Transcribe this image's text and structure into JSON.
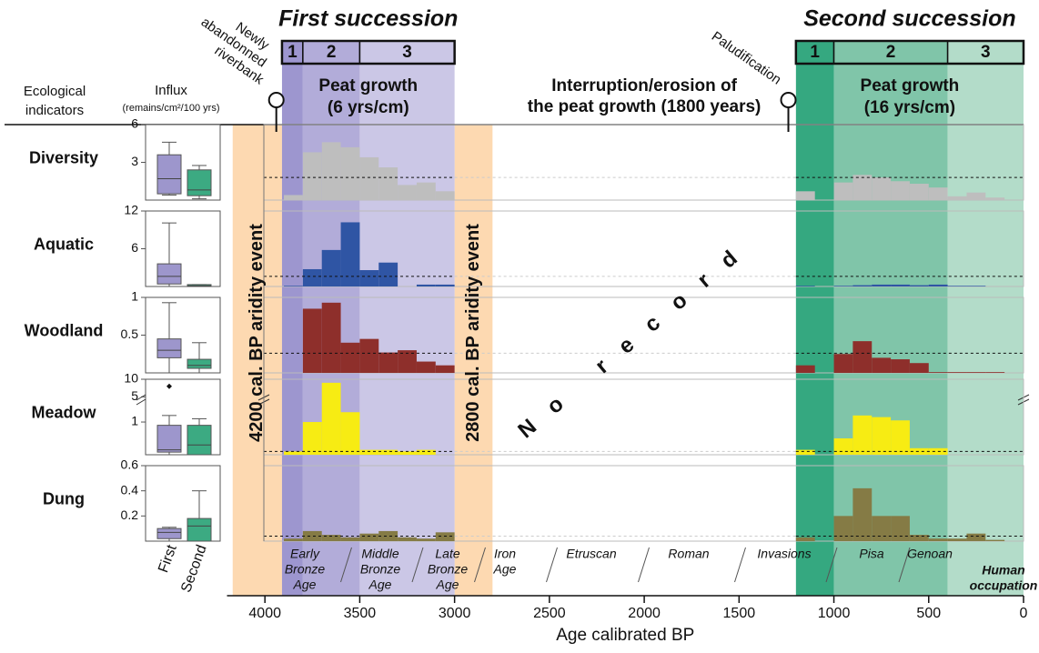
{
  "chart_data": {
    "type": "step",
    "xlabel": "Age calibrated BP",
    "xlim": [
      4200,
      0
    ],
    "xticks": [
      4000,
      3500,
      3000,
      2500,
      2000,
      1500,
      1000,
      500,
      0
    ],
    "box": {
      "header": [
        "Ecological",
        "indicators"
      ],
      "title": "Influx",
      "subtitle": "(remains/cm²/100 yrs)",
      "categories": [
        "First",
        "Second"
      ],
      "colors": [
        "#9d96cc",
        "#3caa82"
      ]
    },
    "successions": [
      {
        "title": "First succession",
        "color": "#5b4fa3",
        "growth": [
          "Peat growth",
          "(6 yrs/cm)"
        ],
        "bins": [
          3900,
          3800,
          3700,
          3600,
          3500,
          3400,
          3300,
          3200,
          3100,
          3000
        ],
        "phases": [
          {
            "label": "1",
            "span": [
              3910,
              3800
            ],
            "color": "#9d96cf"
          },
          {
            "label": "2",
            "span": [
              3800,
              3500
            ],
            "color": "#b2acd9"
          },
          {
            "label": "3",
            "span": [
              3500,
              3000
            ],
            "color": "#cbc7e6"
          }
        ]
      },
      {
        "title": "Second succession",
        "color": "#1f9a6e",
        "growth": [
          "Peat growth",
          "(16 yrs/cm)"
        ],
        "bins": [
          1200,
          1100,
          1000,
          900,
          800,
          700,
          600,
          500,
          400,
          300,
          200,
          100,
          0
        ],
        "phases": [
          {
            "label": "1",
            "span": [
              1200,
              1000
            ],
            "color": "#35a880"
          },
          {
            "label": "2",
            "span": [
              1000,
              400
            ],
            "color": "#80c5a9"
          },
          {
            "label": "3",
            "span": [
              400,
              0
            ],
            "color": "#b3dcc9"
          }
        ]
      }
    ],
    "aridity": [
      {
        "label": "4200 cal. BP aridity event",
        "span": [
          4170,
          3910
        ]
      },
      {
        "label": "2800 cal. BP aridity event",
        "span": [
          3000,
          2800
        ]
      }
    ],
    "events": [
      {
        "label": [
          "Newly",
          "abandonned",
          "riverbank"
        ],
        "x": 3940
      },
      {
        "label": [
          "Paludification"
        ],
        "x": 1240
      }
    ],
    "interruption": [
      "Interruption/erosion of",
      "the peat growth (1800 years)"
    ],
    "no_record": "No record",
    "periods": [
      [
        "Early",
        "Bronze",
        "Age"
      ],
      [
        "Middle",
        "Bronze",
        "Age"
      ],
      [
        "Late",
        "Bronze",
        "Age"
      ],
      [
        "Iron",
        "Age"
      ],
      [
        "Etruscan"
      ],
      [
        "Roman"
      ],
      [
        "Invasions"
      ],
      [
        "Pisa"
      ],
      [
        "Genoan"
      ],
      [
        "Human",
        "occupation"
      ]
    ],
    "panels": [
      {
        "name": "Diversity",
        "color": "#bebebe",
        "ylim": [
          0,
          6
        ],
        "yticks": [
          3,
          6
        ],
        "threshold": 1.8,
        "values": [
          [
            0.4,
            3.8,
            4.6,
            4.2,
            3.4,
            2.6,
            1.2,
            1.4,
            0.7
          ],
          [
            0.7,
            0,
            1.4,
            2.0,
            1.8,
            1.5,
            1.3,
            1.0,
            0.3,
            0.6,
            0.2,
            0
          ]
        ],
        "boxes": [
          [
            0.4,
            0.5,
            1.7,
            3.6,
            4.6
          ],
          [
            0.1,
            0.35,
            0.8,
            2.4,
            2.75
          ]
        ]
      },
      {
        "name": "Aquatic",
        "color": "#2f55a4",
        "ylim": [
          0,
          12
        ],
        "yticks": [
          6,
          12
        ],
        "threshold": 1.6,
        "values": [
          [
            0.1,
            2.75,
            5.8,
            10.2,
            2.6,
            3.8,
            0,
            0.3,
            0.3
          ],
          [
            0.1,
            0,
            0.1,
            0.2,
            0.3,
            0.3,
            0.2,
            0.3,
            0.1,
            0.1,
            0,
            0
          ]
        ],
        "boxes": [
          [
            0,
            0.4,
            1.6,
            3.6,
            10.1
          ],
          [
            0,
            0,
            0.1,
            0.3,
            0.3
          ]
        ]
      },
      {
        "name": "Woodland",
        "color": "#8e2f2b",
        "ylim": [
          0,
          1
        ],
        "yticks": [
          0.5,
          1
        ],
        "threshold": 0.26,
        "values": [
          [
            0,
            0.85,
            0.93,
            0.4,
            0.45,
            0.27,
            0.3,
            0.15,
            0.1
          ],
          [
            0.1,
            0,
            0.25,
            0.42,
            0.2,
            0.18,
            0.13,
            0.01,
            0.01,
            0.01,
            0.01,
            0
          ]
        ],
        "boxes": [
          [
            0,
            0.2,
            0.3,
            0.45,
            0.93
          ],
          [
            0,
            0.06,
            0.1,
            0.18,
            0.4
          ]
        ]
      },
      {
        "name": "Meadow",
        "color": "#f7ec13",
        "ylim": [
          0,
          10
        ],
        "ybreak": [
          1.5,
          4
        ],
        "yticks": [
          1,
          5,
          10
        ],
        "threshold": 0.1,
        "values": [
          [
            0.1,
            1.0,
            9,
            1.3,
            0.15,
            0.15,
            0.1,
            0.15,
            0
          ],
          [
            0.15,
            0,
            0.5,
            1.2,
            1.15,
            1.05,
            0.2,
            0.2,
            0,
            0,
            0,
            0
          ]
        ],
        "boxes": [
          [
            0,
            0.08,
            0.15,
            0.9,
            1.2
          ],
          [
            0,
            0,
            0.3,
            0.9,
            1.1
          ]
        ],
        "outliers": [
          [
            8
          ],
          []
        ]
      },
      {
        "name": "Dung",
        "color": "#857b45",
        "ylim": [
          0,
          0.6
        ],
        "yticks": [
          0.2,
          0.4,
          0.6
        ],
        "threshold": 0.04,
        "values": [
          [
            0.02,
            0.08,
            0.05,
            0.03,
            0.06,
            0.08,
            0.03,
            0.02,
            0.07
          ],
          [
            0.03,
            0,
            0.2,
            0.42,
            0.2,
            0.2,
            0.05,
            0.02,
            0.02,
            0.06,
            0.01,
            0
          ]
        ],
        "boxes": [
          [
            0,
            0.02,
            0.07,
            0.1,
            0.11
          ],
          [
            0,
            0,
            0.12,
            0.18,
            0.4
          ]
        ]
      }
    ]
  }
}
